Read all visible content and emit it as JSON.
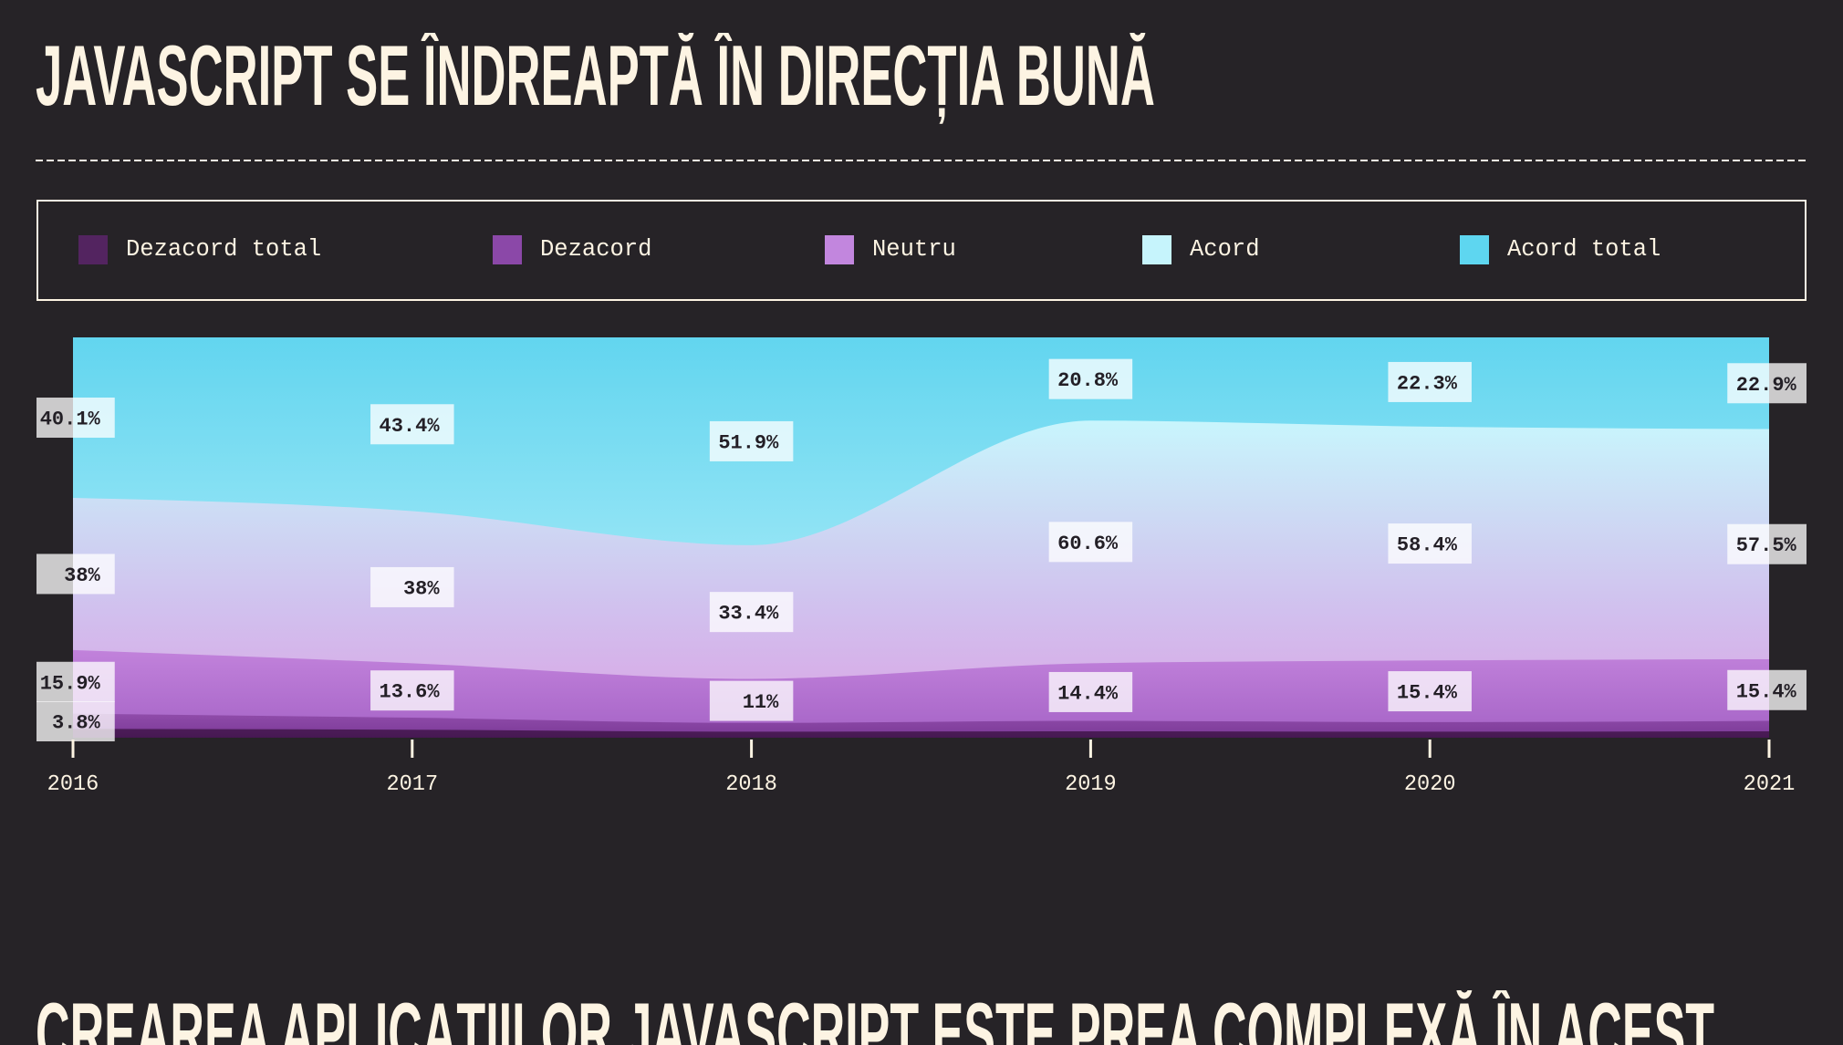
{
  "header": {
    "title": "JAVASCRIPT SE ÎNDREAPTĂ ÎN DIRECȚIA BUNĂ"
  },
  "next_section": {
    "title": "CREAREA APLICAȚIILOR JAVASCRIPT ESTE PREA COMPLEXĂ ÎN ACEST"
  },
  "theme": {
    "background": "#262327",
    "text": "#fdf4e3",
    "label_box": "rgba(255,255,255,0.76)",
    "label_text": "#231f26"
  },
  "chart_data": {
    "type": "area",
    "stacking": "percent",
    "legend": "top",
    "grid": false,
    "ylim": [
      0,
      100
    ],
    "categories": [
      "2016",
      "2017",
      "2018",
      "2019",
      "2020",
      "2021"
    ],
    "series": [
      {
        "name": "Dezacord total",
        "color": "#532460",
        "values": [
          2.2,
          2.0,
          1.5,
          1.6,
          1.5,
          1.6
        ],
        "labels": [
          null,
          null,
          null,
          null,
          null,
          null
        ]
      },
      {
        "name": "Dezacord",
        "color": "#8b48a8",
        "values": [
          3.8,
          3.0,
          2.2,
          2.6,
          2.4,
          2.6
        ],
        "labels": [
          "3.8%",
          null,
          null,
          null,
          null,
          null
        ]
      },
      {
        "name": "Neutru",
        "color": "#c286de",
        "values": [
          15.9,
          13.6,
          11,
          14.4,
          15.4,
          15.4
        ],
        "labels": [
          "15.9%",
          "13.6%",
          "11%",
          "14.4%",
          "15.4%",
          "15.4%"
        ]
      },
      {
        "name": "Acord",
        "color": "#c6f4fc",
        "values": [
          38,
          38,
          33.4,
          60.6,
          58.4,
          57.5
        ],
        "labels": [
          "38%",
          "38%",
          "33.4%",
          "60.6%",
          "58.4%",
          "57.5%"
        ]
      },
      {
        "name": "Acord total",
        "color": "#5ed6f0",
        "values": [
          40.1,
          43.4,
          51.9,
          20.8,
          22.3,
          22.9
        ],
        "labels": [
          "40.1%",
          "43.4%",
          "51.9%",
          "20.8%",
          "22.3%",
          "22.9%"
        ]
      }
    ]
  }
}
